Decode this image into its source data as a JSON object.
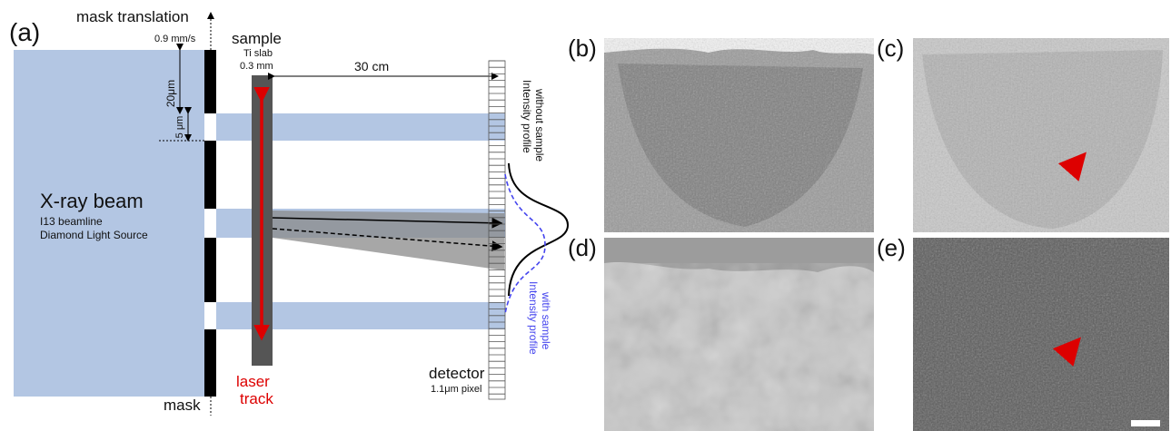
{
  "panel_a": {
    "label": "(a)",
    "mask_translation": "mask translation",
    "speed": "0.9 mm/s",
    "sample": "sample",
    "sample_material": "Ti slab",
    "sample_thickness": "0.3 mm",
    "distance": "30 cm",
    "period": "20μm",
    "opening": "5 μm",
    "beam": "X-ray beam",
    "beamline": "I13 beamline",
    "facility": "Diamond Light Source",
    "profile_without": [
      "Intensity profile",
      "without sample"
    ],
    "profile_with": [
      "Intensity profile",
      "with sample"
    ],
    "laser": [
      "laser",
      "track"
    ],
    "detector": "detector",
    "pixel": "1.1μm pixel",
    "mask": "mask"
  },
  "panels": [
    {
      "label": "(b)"
    },
    {
      "label": "(c)"
    },
    {
      "label": "(d)"
    },
    {
      "label": "(e)"
    }
  ]
}
